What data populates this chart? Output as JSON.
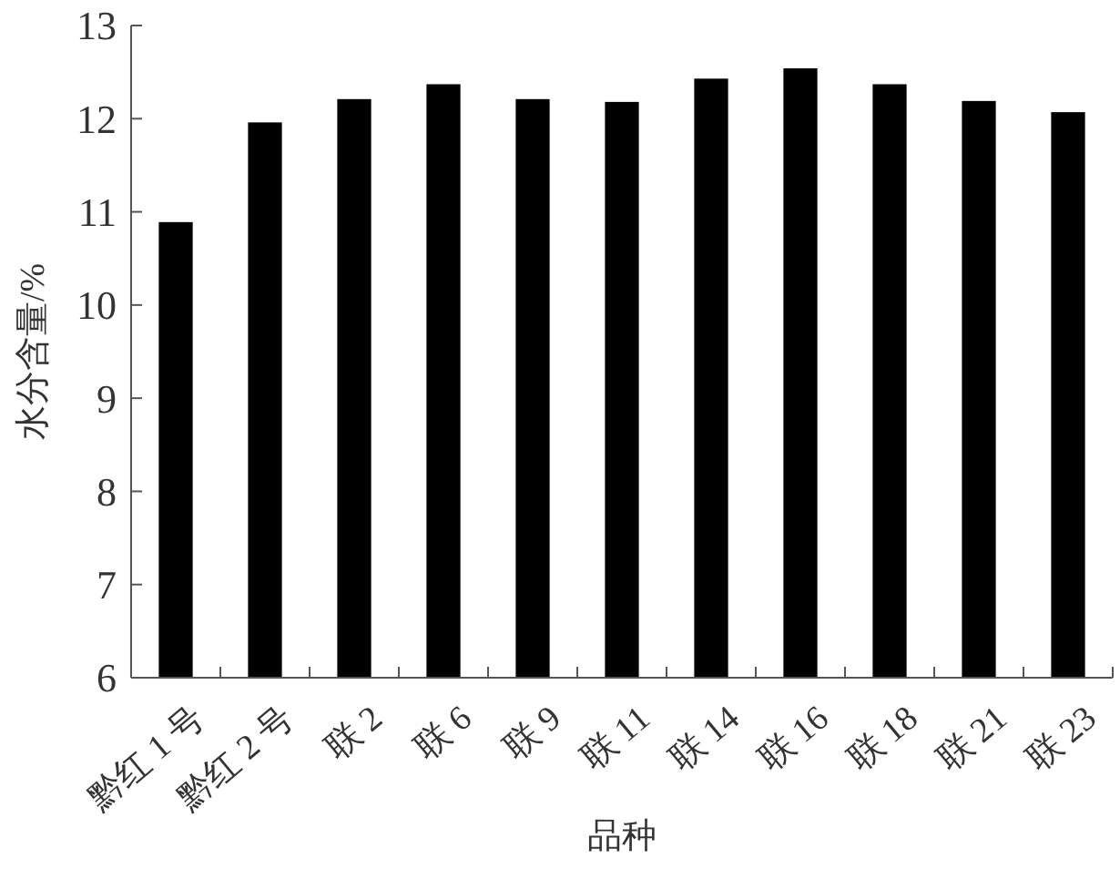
{
  "chart_data": {
    "type": "bar",
    "xlabel": "品种",
    "ylabel": "水分含量/%",
    "categories": [
      "黔红 1 号",
      "黔红 2 号",
      "联 2",
      "联 6",
      "联 9",
      "联 11",
      "联 14",
      "联 16",
      "联 18",
      "联 21",
      "联 23"
    ],
    "values": [
      10.89,
      11.96,
      12.21,
      12.37,
      12.21,
      12.18,
      12.43,
      12.54,
      12.37,
      12.19,
      12.07
    ],
    "color": "#000000",
    "ylim": [
      6,
      13
    ],
    "yticks": [
      6,
      7,
      8,
      9,
      10,
      11,
      12,
      13
    ]
  }
}
